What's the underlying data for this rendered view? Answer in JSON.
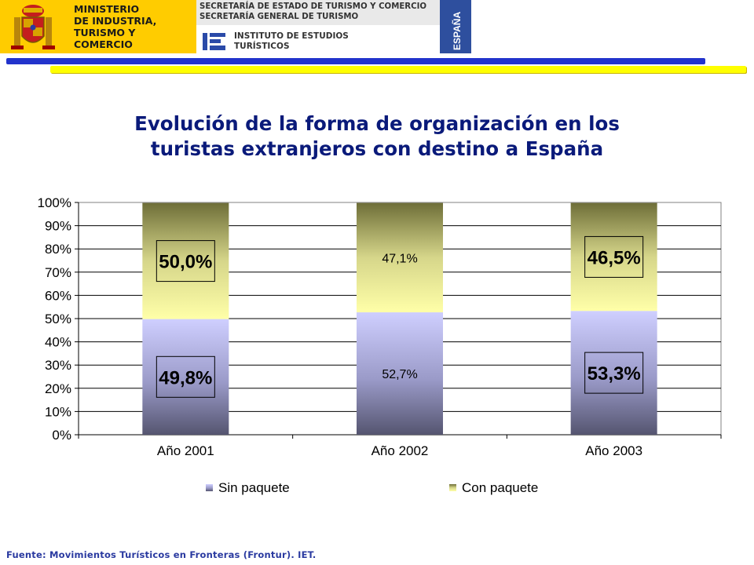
{
  "header": {
    "ministry_name": "MINISTERIO\nDE INDUSTRIA,\nTURISMO Y\nCOMERCIO",
    "secretaria": "SECRETARÍA DE ESTADO DE TURISMO Y COMERCIO\nSECRETARÍA GENERAL DE TURISMO",
    "instituto": "INSTITUTO DE ESTUDIOS\nTURÍSTICOS",
    "country_tab": "ESPAÑA",
    "colors": {
      "ministry_band": "#ffcc00",
      "country_tab": "#2e4f9e",
      "rule_blue": "#2233cc",
      "rule_yellow": "#ffff00"
    }
  },
  "slide": {
    "title": "Evolución de la forma de organización en los\nturistas extranjeros con destino a España",
    "source": "Fuente: Movimientos  Turísticos en Fronteras (Frontur). IET."
  },
  "chart_data": {
    "type": "bar",
    "stacked": true,
    "categories": [
      "Año 2001",
      "Año 2002",
      "Año 2003"
    ],
    "series": [
      {
        "name": "Sin paquete",
        "values": [
          49.8,
          52.7,
          53.3
        ],
        "labels": [
          "49,8%",
          "52,7%",
          "53,3%"
        ],
        "color": "#c8c8ff"
      },
      {
        "name": "Con paquete",
        "values": [
          50.0,
          47.1,
          46.5
        ],
        "labels": [
          "50,0%",
          "47,1%",
          "46,5%"
        ],
        "color": "#ffff99"
      }
    ],
    "boxed_labels": [
      true,
      false,
      true
    ],
    "y_ticks": [
      "0%",
      "10%",
      "20%",
      "30%",
      "40%",
      "50%",
      "60%",
      "70%",
      "80%",
      "90%",
      "100%"
    ],
    "ylim": [
      0,
      100
    ],
    "grid": true,
    "legend": "bottom"
  }
}
